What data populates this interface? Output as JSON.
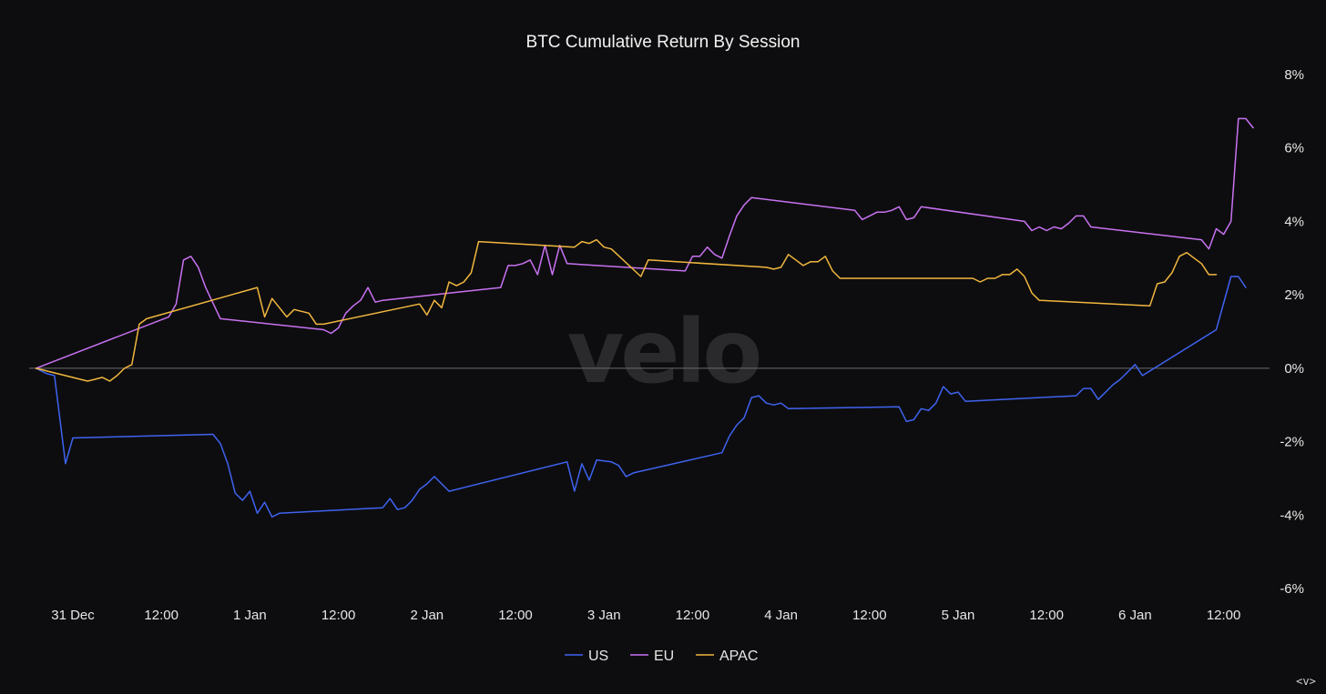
{
  "chart_data": {
    "type": "line",
    "title": "BTC Cumulative Return By Session",
    "xlabel": "",
    "ylabel": "",
    "x_ticks": [
      "31 Dec",
      "12:00",
      "1 Jan",
      "12:00",
      "2 Jan",
      "12:00",
      "3 Jan",
      "12:00",
      "4 Jan",
      "12:00",
      "5 Jan",
      "12:00",
      "6 Jan",
      "12:00"
    ],
    "x_unit": "hours since 31 Dec 00:00",
    "xlim": [
      -5,
      159
    ],
    "y_ticks": [
      "8%",
      "6%",
      "4%",
      "2%",
      "0%",
      "-2%",
      "-4%",
      "-6%"
    ],
    "ylim": [
      -6,
      8
    ],
    "y_axis_position": "right",
    "grid": false,
    "legend_position": "bottom-center",
    "series": [
      {
        "name": "US",
        "color": "#3f63f0",
        "points": [
          [
            -5,
            0.0
          ],
          [
            -3.5,
            -0.15
          ],
          [
            -2.5,
            -0.2
          ],
          [
            -1.0,
            -2.6
          ],
          [
            0,
            -1.9
          ],
          [
            19,
            -1.8
          ],
          [
            20,
            -2.05
          ],
          [
            21,
            -2.6
          ],
          [
            22,
            -3.4
          ],
          [
            23,
            -3.6
          ],
          [
            24,
            -3.35
          ],
          [
            25,
            -3.95
          ],
          [
            26,
            -3.65
          ],
          [
            27,
            -4.05
          ],
          [
            28,
            -3.95
          ],
          [
            42,
            -3.8
          ],
          [
            43,
            -3.55
          ],
          [
            44,
            -3.85
          ],
          [
            45,
            -3.8
          ],
          [
            46,
            -3.6
          ],
          [
            47,
            -3.3
          ],
          [
            48,
            -3.15
          ],
          [
            49,
            -2.95
          ],
          [
            51,
            -3.35
          ],
          [
            67,
            -2.55
          ],
          [
            68,
            -3.35
          ],
          [
            69,
            -2.6
          ],
          [
            70,
            -3.05
          ],
          [
            71,
            -2.5
          ],
          [
            73,
            -2.55
          ],
          [
            74,
            -2.65
          ],
          [
            75,
            -2.95
          ],
          [
            76,
            -2.85
          ],
          [
            88,
            -2.3
          ],
          [
            89,
            -1.85
          ],
          [
            90,
            -1.55
          ],
          [
            91,
            -1.35
          ],
          [
            92,
            -0.8
          ],
          [
            93,
            -0.75
          ],
          [
            94,
            -0.95
          ],
          [
            95,
            -1.0
          ],
          [
            96,
            -0.95
          ],
          [
            97,
            -1.1
          ],
          [
            112,
            -1.05
          ],
          [
            113,
            -1.45
          ],
          [
            114,
            -1.4
          ],
          [
            115,
            -1.1
          ],
          [
            116,
            -1.15
          ],
          [
            117,
            -0.95
          ],
          [
            118,
            -0.5
          ],
          [
            119,
            -0.7
          ],
          [
            120,
            -0.65
          ],
          [
            121,
            -0.9
          ],
          [
            136,
            -0.75
          ],
          [
            137,
            -0.55
          ],
          [
            138,
            -0.55
          ],
          [
            139,
            -0.85
          ],
          [
            141,
            -0.45
          ],
          [
            142,
            -0.3
          ],
          [
            143,
            -0.1
          ],
          [
            144,
            0.1
          ],
          [
            145,
            -0.2
          ],
          [
            155,
            1.05
          ],
          [
            157,
            2.5
          ],
          [
            158,
            2.5
          ],
          [
            159,
            2.2
          ]
        ]
      },
      {
        "name": "EU",
        "color": "#c972f2",
        "points": [
          [
            -5,
            0.0
          ],
          [
            13,
            1.4
          ],
          [
            14,
            1.75
          ],
          [
            15,
            2.95
          ],
          [
            16,
            3.05
          ],
          [
            17,
            2.75
          ],
          [
            18,
            2.2
          ],
          [
            20,
            1.35
          ],
          [
            34,
            1.05
          ],
          [
            35,
            0.95
          ],
          [
            36,
            1.1
          ],
          [
            37,
            1.5
          ],
          [
            38,
            1.7
          ],
          [
            39,
            1.85
          ],
          [
            40,
            2.2
          ],
          [
            41,
            1.8
          ],
          [
            42,
            1.85
          ],
          [
            58,
            2.2
          ],
          [
            59,
            2.8
          ],
          [
            60,
            2.8
          ],
          [
            61,
            2.85
          ],
          [
            62,
            2.95
          ],
          [
            63,
            2.55
          ],
          [
            64,
            3.35
          ],
          [
            65,
            2.55
          ],
          [
            66,
            3.35
          ],
          [
            67,
            2.85
          ],
          [
            83,
            2.65
          ],
          [
            84,
            3.05
          ],
          [
            85,
            3.05
          ],
          [
            86,
            3.3
          ],
          [
            87,
            3.1
          ],
          [
            88,
            3.0
          ],
          [
            89,
            3.6
          ],
          [
            90,
            4.15
          ],
          [
            91,
            4.45
          ],
          [
            92,
            4.65
          ],
          [
            106,
            4.3
          ],
          [
            107,
            4.05
          ],
          [
            108,
            4.15
          ],
          [
            109,
            4.25
          ],
          [
            110,
            4.25
          ],
          [
            111,
            4.3
          ],
          [
            112,
            4.4
          ],
          [
            113,
            4.05
          ],
          [
            114,
            4.1
          ],
          [
            115,
            4.4
          ],
          [
            129,
            4.0
          ],
          [
            130,
            3.75
          ],
          [
            131,
            3.85
          ],
          [
            132,
            3.75
          ],
          [
            133,
            3.85
          ],
          [
            134,
            3.8
          ],
          [
            135,
            3.95
          ],
          [
            136,
            4.15
          ],
          [
            137,
            4.15
          ],
          [
            138,
            3.85
          ],
          [
            153,
            3.5
          ],
          [
            154,
            3.25
          ],
          [
            155,
            3.8
          ],
          [
            156,
            3.65
          ],
          [
            157,
            4.0
          ],
          [
            158,
            6.8
          ],
          [
            159,
            6.8
          ],
          [
            160,
            6.55
          ]
        ]
      },
      {
        "name": "APAC",
        "color": "#f1b73e",
        "points": [
          [
            -5,
            0.0
          ],
          [
            1,
            -0.3
          ],
          [
            2,
            -0.35
          ],
          [
            3,
            -0.3
          ],
          [
            4,
            -0.25
          ],
          [
            5,
            -0.35
          ],
          [
            6,
            -0.2
          ],
          [
            7,
            0.0
          ],
          [
            8,
            0.1
          ],
          [
            9,
            1.2
          ],
          [
            10,
            1.35
          ],
          [
            25,
            2.2
          ],
          [
            26,
            1.4
          ],
          [
            27,
            1.9
          ],
          [
            28,
            1.65
          ],
          [
            29,
            1.4
          ],
          [
            30,
            1.6
          ],
          [
            31,
            1.55
          ],
          [
            32,
            1.5
          ],
          [
            33,
            1.2
          ],
          [
            34,
            1.2
          ],
          [
            47,
            1.75
          ],
          [
            48,
            1.45
          ],
          [
            49,
            1.85
          ],
          [
            50,
            1.65
          ],
          [
            51,
            2.35
          ],
          [
            52,
            2.25
          ],
          [
            53,
            2.35
          ],
          [
            54,
            2.6
          ],
          [
            55,
            3.45
          ],
          [
            68,
            3.3
          ],
          [
            69,
            3.45
          ],
          [
            70,
            3.4
          ],
          [
            71,
            3.5
          ],
          [
            72,
            3.3
          ],
          [
            73,
            3.25
          ],
          [
            77,
            2.5
          ],
          [
            78,
            2.95
          ],
          [
            94,
            2.75
          ],
          [
            95,
            2.7
          ],
          [
            96,
            2.75
          ],
          [
            97,
            3.1
          ],
          [
            98,
            2.95
          ],
          [
            99,
            2.8
          ],
          [
            100,
            2.9
          ],
          [
            101,
            2.9
          ],
          [
            102,
            3.05
          ],
          [
            103,
            2.65
          ],
          [
            104,
            2.45
          ],
          [
            122,
            2.45
          ],
          [
            123,
            2.35
          ],
          [
            124,
            2.45
          ],
          [
            125,
            2.45
          ],
          [
            126,
            2.55
          ],
          [
            127,
            2.55
          ],
          [
            128,
            2.7
          ],
          [
            129,
            2.5
          ],
          [
            130,
            2.05
          ],
          [
            131,
            1.85
          ],
          [
            146,
            1.7
          ],
          [
            147,
            2.3
          ],
          [
            148,
            2.35
          ],
          [
            149,
            2.6
          ],
          [
            150,
            3.05
          ],
          [
            151,
            3.15
          ],
          [
            152,
            3.0
          ],
          [
            153,
            2.85
          ],
          [
            154,
            2.55
          ],
          [
            155,
            2.55
          ]
        ]
      }
    ]
  },
  "watermark": "velo",
  "corner_mark": "<v>"
}
